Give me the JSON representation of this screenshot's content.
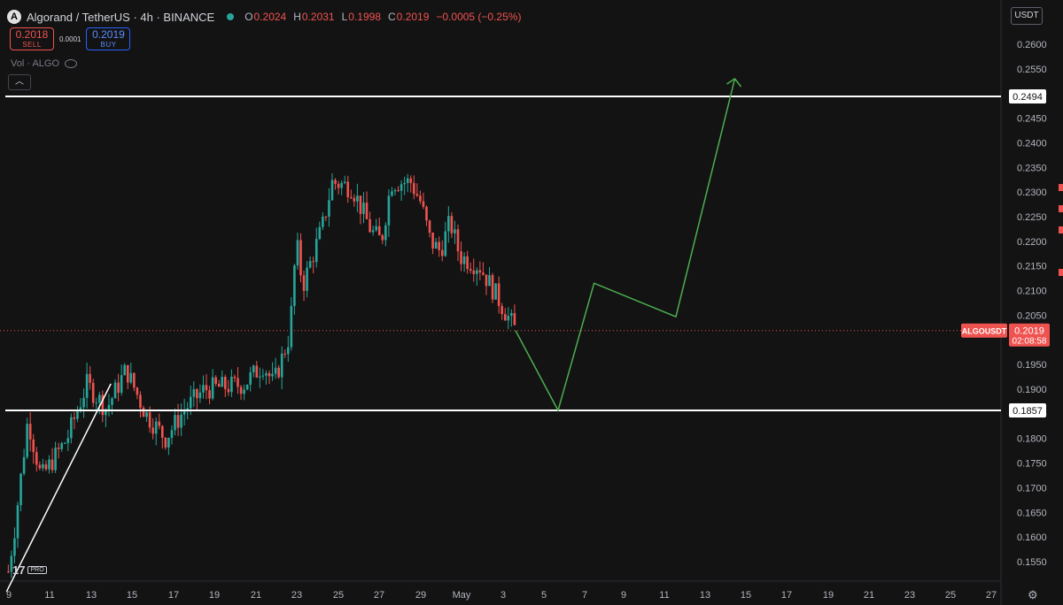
{
  "header": {
    "symbol_title": "Algorand / TetherUS · 4h · BINANCE",
    "logo_glyph": "A",
    "ohlc": [
      {
        "key": "O",
        "value": "0.2024"
      },
      {
        "key": "H",
        "value": "0.2031"
      },
      {
        "key": "L",
        "value": "0.1998"
      },
      {
        "key": "C",
        "value": "0.2019"
      }
    ],
    "change": "−0.0005 (−0.25%)"
  },
  "trade": {
    "sell_price": "0.2018",
    "sell_label": "SELL",
    "spread": "0.0001",
    "buy_price": "0.2019",
    "buy_label": "BUY"
  },
  "volume_label": "Vol · ALGO",
  "currency_button": "USDT",
  "collapse_icon": "chevron-up-icon",
  "branding": {
    "logo": "17",
    "badge": "PRO"
  },
  "colors": {
    "background": "#131313",
    "up": "#26a69a",
    "down": "#ef5350",
    "projection": "#4caf50",
    "level_line": "#ffffff"
  },
  "chart_data": {
    "type": "candlestick",
    "symbol": "ALGOUSDT",
    "timeframe": "4h",
    "ylim": [
      0.1525,
      0.263
    ],
    "y_ticks": [
      "0.2600",
      "0.2550",
      "0.2500",
      "0.2450",
      "0.2400",
      "0.2350",
      "0.2300",
      "0.2250",
      "0.2200",
      "0.2150",
      "0.2100",
      "0.2050",
      "0.2000",
      "0.1950",
      "0.1900",
      "0.1850",
      "0.1800",
      "0.1750",
      "0.1700",
      "0.1650",
      "0.1600",
      "0.1550"
    ],
    "x_ticks": [
      "9",
      "11",
      "13",
      "15",
      "17",
      "19",
      "21",
      "23",
      "25",
      "27",
      "29",
      "May",
      "3",
      "5",
      "7",
      "9",
      "11",
      "13",
      "15",
      "17",
      "19",
      "21",
      "23",
      "25",
      "27"
    ],
    "price_keypoints": [
      {
        "date": "Apr 9 00:00",
        "price": 0.153
      },
      {
        "date": "Apr 9 08:00",
        "price": 0.162
      },
      {
        "date": "Apr 10 00:00",
        "price": 0.184
      },
      {
        "date": "Apr 10 16:00",
        "price": 0.172
      },
      {
        "date": "Apr 12 00:00",
        "price": 0.18
      },
      {
        "date": "Apr 13 00:00",
        "price": 0.191
      },
      {
        "date": "Apr 14 00:00",
        "price": 0.186
      },
      {
        "date": "Apr 15 00:00",
        "price": 0.194
      },
      {
        "date": "Apr 16 00:00",
        "price": 0.185
      },
      {
        "date": "Apr 17 00:00",
        "price": 0.18
      },
      {
        "date": "Apr 18 00:00",
        "price": 0.186
      },
      {
        "date": "Apr 19 00:00",
        "price": 0.19
      },
      {
        "date": "Apr 21 00:00",
        "price": 0.191
      },
      {
        "date": "Apr 22 00:00",
        "price": 0.195
      },
      {
        "date": "Apr 22 12:00",
        "price": 0.191
      },
      {
        "date": "Apr 23 08:00",
        "price": 0.201
      },
      {
        "date": "Apr 23 16:00",
        "price": 0.22
      },
      {
        "date": "Apr 24 00:00",
        "price": 0.211
      },
      {
        "date": "Apr 25 00:00",
        "price": 0.223
      },
      {
        "date": "Apr 25 12:00",
        "price": 0.232
      },
      {
        "date": "Apr 26 12:00",
        "price": 0.231
      },
      {
        "date": "Apr 27 12:00",
        "price": 0.222
      },
      {
        "date": "Apr 28 00:00",
        "price": 0.22
      },
      {
        "date": "Apr 28 12:00",
        "price": 0.232
      },
      {
        "date": "Apr 29 12:00",
        "price": 0.232
      },
      {
        "date": "Apr 30 00:00",
        "price": 0.228
      },
      {
        "date": "Apr 30 12:00",
        "price": 0.22
      },
      {
        "date": "May 1 00:00",
        "price": 0.218
      },
      {
        "date": "May 1 12:00",
        "price": 0.224
      },
      {
        "date": "May 2 00:00",
        "price": 0.217
      },
      {
        "date": "May 3 00:00",
        "price": 0.215
      },
      {
        "date": "May 4 00:00",
        "price": 0.208
      },
      {
        "date": "May 4 20:00",
        "price": 0.2019
      }
    ],
    "levels": [
      {
        "label": "0.2494",
        "price": 0.2494
      },
      {
        "label": "0.1857",
        "price": 0.1857
      }
    ],
    "current_price": {
      "symbol": "ALGOUSDT",
      "value": "0.2019",
      "price": 0.2019,
      "countdown": "02:08:58"
    },
    "projection_path": [
      {
        "date": "May 4 20:00",
        "price": 0.2019
      },
      {
        "date": "May 7 00:00",
        "price": 0.1857
      },
      {
        "date": "May 8 20:00",
        "price": 0.2115
      },
      {
        "date": "May 13 00:00",
        "price": 0.2047
      },
      {
        "date": "May 16 00:00",
        "price": 0.253
      }
    ],
    "trend_line": [
      {
        "date": "Apr 9 00:00",
        "price": 0.1525
      },
      {
        "date": "Apr 14 00:00",
        "price": 0.192
      }
    ]
  }
}
